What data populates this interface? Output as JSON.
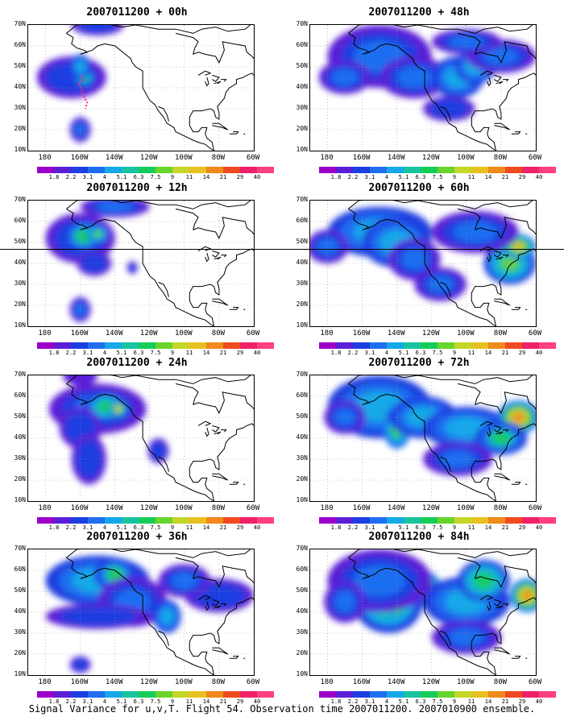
{
  "panels": [
    {
      "title": "2007011200 + 00h",
      "lead_hours": 0
    },
    {
      "title": "2007011200 + 48h",
      "lead_hours": 48
    },
    {
      "title": "2007011200 + 12h",
      "lead_hours": 12
    },
    {
      "title": "2007011200 + 60h",
      "lead_hours": 60
    },
    {
      "title": "2007011200 + 24h",
      "lead_hours": 24
    },
    {
      "title": "2007011200 + 72h",
      "lead_hours": 72
    },
    {
      "title": "2007011200 + 36h",
      "lead_hours": 36
    },
    {
      "title": "2007011200 + 84h",
      "lead_hours": 84
    }
  ],
  "lat_ticks": [
    "70N",
    "60N",
    "50N",
    "40N",
    "30N",
    "20N",
    "10N"
  ],
  "lon_ticks": [
    "180",
    "160W",
    "140W",
    "120W",
    "100W",
    "80W",
    "60W"
  ],
  "colorbar": {
    "labels": [
      "1.8",
      "2.2",
      "3.1",
      "4",
      "5.1",
      "6.3",
      "7.5",
      "9",
      "11",
      "14",
      "21",
      "29",
      "40"
    ],
    "colors": [
      "#9c00c8",
      "#5a1fd6",
      "#1d3ee0",
      "#1f6ef0",
      "#16a8e8",
      "#17c4a0",
      "#16cc58",
      "#68d42c",
      "#c4d628",
      "#e8c020",
      "#f08a1c",
      "#f04a20",
      "#f0206a",
      "#ff4080"
    ]
  },
  "caption": "Signal Variance for u,v,T. Flight 54. Observation time 2007011200. 2007010900 ensemble."
}
